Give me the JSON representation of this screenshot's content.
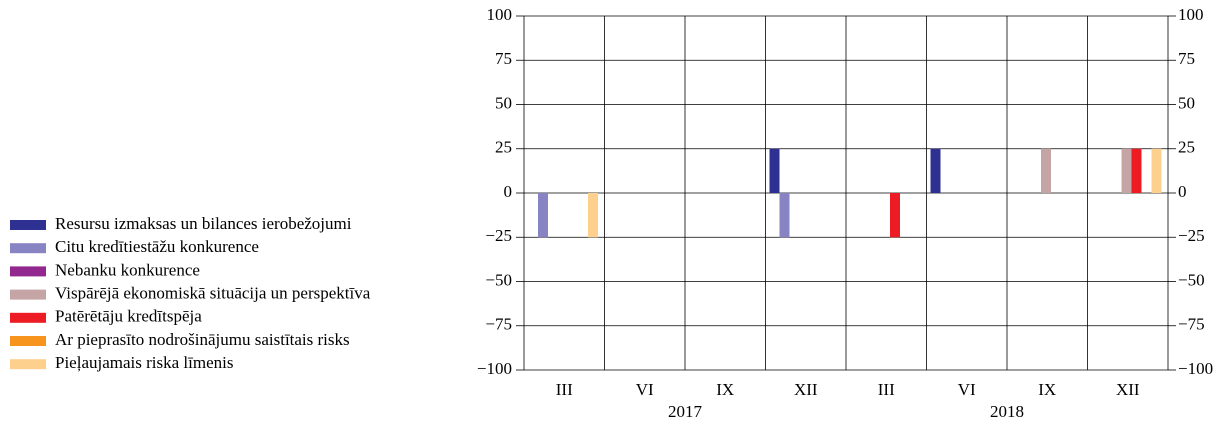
{
  "chart_data": {
    "type": "bar",
    "categories": [
      "III",
      "VI",
      "IX",
      "XII",
      "III",
      "VI",
      "IX",
      "XII"
    ],
    "group_labels": [
      "2017",
      "2018"
    ],
    "series": [
      {
        "name": "Resursu izmaksas un bilances ierobežojumi",
        "color": "#2e3192",
        "values": [
          0,
          0,
          0,
          25,
          0,
          25,
          0,
          0
        ]
      },
      {
        "name": "Citu kredītiestāžu konkurence",
        "color": "#8884c4",
        "values": [
          -25,
          0,
          0,
          -25,
          0,
          0,
          0,
          0
        ]
      },
      {
        "name": "Nebanku konkurence",
        "color": "#92278f",
        "values": [
          0,
          0,
          0,
          0,
          0,
          0,
          0,
          0
        ]
      },
      {
        "name": "Vispārējā ekonomiskā situācija un perspektīva",
        "color": "#c4a4a4",
        "values": [
          0,
          0,
          0,
          0,
          0,
          0,
          25,
          25
        ]
      },
      {
        "name": "Patērētāju kredītspēja",
        "color": "#ed1c24",
        "values": [
          0,
          0,
          0,
          0,
          -25,
          0,
          0,
          25
        ]
      },
      {
        "name": "Ar pieprasīto nodrošinājumu saistītais risks",
        "color": "#f7941d",
        "values": [
          0,
          0,
          0,
          0,
          0,
          0,
          0,
          0
        ]
      },
      {
        "name": "Pieļaujamais riska līmenis",
        "color": "#fdd08e",
        "values": [
          -25,
          0,
          0,
          0,
          0,
          0,
          0,
          25
        ]
      }
    ],
    "ylim": [
      -100,
      100
    ],
    "yticks": [
      {
        "value": -100,
        "label": "−100"
      },
      {
        "value": -75,
        "label": "−75"
      },
      {
        "value": -50,
        "label": "−50"
      },
      {
        "value": -25,
        "label": "−25"
      },
      0,
      25,
      50,
      75,
      100
    ],
    "grid": true,
    "legend": "left"
  }
}
